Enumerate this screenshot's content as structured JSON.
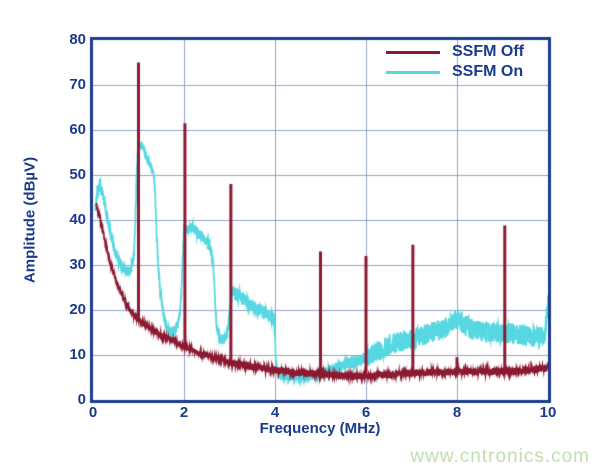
{
  "watermark": {
    "text": "www.cntronics.com",
    "color": "#bfe0ae"
  },
  "chart_data": {
    "type": "line",
    "title": "",
    "xlabel": "Frequency (MHz)",
    "ylabel": "Amplitude (dBµV)",
    "xlim": [
      0,
      10
    ],
    "ylim": [
      0,
      80
    ],
    "xticks": [
      0,
      2,
      4,
      6,
      8,
      10
    ],
    "yticks": [
      0,
      10,
      20,
      30,
      40,
      50,
      60,
      70,
      80
    ],
    "grid": true,
    "legend_position": "top-right",
    "colors": {
      "axis": "#1a3a8c",
      "grid": "#93a3c9",
      "background": "#ffffff"
    },
    "series": [
      {
        "name": "SSFM Off",
        "color": "#8b1a31",
        "description": "Smooth 1/f noise floor with narrow spurs at harmonics",
        "points": [
          [
            0.07,
            43.5
          ],
          [
            0.12,
            41.5
          ],
          [
            0.18,
            39.3
          ],
          [
            0.26,
            35.6
          ],
          [
            0.33,
            32.2
          ],
          [
            0.4,
            29.6
          ],
          [
            0.48,
            27.4
          ],
          [
            0.59,
            24.4
          ],
          [
            0.7,
            22.0
          ],
          [
            0.84,
            19.5
          ],
          [
            1.0,
            17.8
          ],
          [
            1.2,
            16.2
          ],
          [
            1.4,
            15.0
          ],
          [
            1.6,
            14.0
          ],
          [
            1.8,
            13.0
          ],
          [
            2.0,
            11.8
          ],
          [
            2.2,
            11.0
          ],
          [
            2.45,
            10.2
          ],
          [
            2.7,
            9.4
          ],
          [
            2.95,
            8.6
          ],
          [
            3.2,
            8.0
          ],
          [
            3.5,
            7.4
          ],
          [
            3.8,
            6.9
          ],
          [
            4.1,
            6.5
          ],
          [
            4.5,
            6.1
          ],
          [
            5.0,
            5.7
          ],
          [
            5.4,
            5.4
          ],
          [
            5.8,
            5.3
          ],
          [
            6.2,
            5.4
          ],
          [
            6.6,
            5.7
          ],
          [
            7.0,
            6.0
          ],
          [
            7.4,
            6.1
          ],
          [
            7.8,
            6.2
          ],
          [
            8.2,
            6.3
          ],
          [
            8.6,
            6.3
          ],
          [
            9.0,
            6.4
          ],
          [
            9.4,
            6.5
          ],
          [
            9.7,
            6.7
          ],
          [
            10.0,
            7.2
          ]
        ],
        "spikes": [
          [
            1.0,
            75.0
          ],
          [
            2.02,
            61.5
          ],
          [
            3.03,
            48.0
          ],
          [
            5.0,
            33.0
          ],
          [
            6.0,
            32.0
          ],
          [
            7.03,
            34.5
          ],
          [
            8.0,
            9.5
          ],
          [
            9.05,
            38.8
          ]
        ],
        "noise_segments": [
          [
            0.0,
            3.0,
            0.5
          ],
          [
            3.0,
            10.05,
            0.8
          ]
        ]
      },
      {
        "name": "SSFM On",
        "color": "#56d7e1",
        "description": "Spread-spectrum: broad humps at harmonics, raised noise floor above 5 MHz",
        "points": [
          [
            0.05,
            43.0
          ],
          [
            0.1,
            46.5
          ],
          [
            0.15,
            48.0
          ],
          [
            0.2,
            46.0
          ],
          [
            0.26,
            43.5
          ],
          [
            0.3,
            41.0
          ],
          [
            0.36,
            38.0
          ],
          [
            0.42,
            35.5
          ],
          [
            0.5,
            32.5
          ],
          [
            0.58,
            30.5
          ],
          [
            0.68,
            29.0
          ],
          [
            0.78,
            28.3
          ],
          [
            0.85,
            29.5
          ],
          [
            0.9,
            32.0
          ],
          [
            0.93,
            40.0
          ],
          [
            0.96,
            50.0
          ],
          [
            0.98,
            55.0
          ],
          [
            1.0,
            57.0
          ],
          [
            1.08,
            56.5
          ],
          [
            1.12,
            55.5
          ],
          [
            1.16,
            54.5
          ],
          [
            1.2,
            53.5
          ],
          [
            1.25,
            52.5
          ],
          [
            1.3,
            51.0
          ],
          [
            1.34,
            50.0
          ],
          [
            1.37,
            45.0
          ],
          [
            1.4,
            36.0
          ],
          [
            1.44,
            29.0
          ],
          [
            1.48,
            24.0
          ],
          [
            1.53,
            20.0
          ],
          [
            1.58,
            17.5
          ],
          [
            1.65,
            15.5
          ],
          [
            1.72,
            15.0
          ],
          [
            1.8,
            15.5
          ],
          [
            1.87,
            17.0
          ],
          [
            1.92,
            20.0
          ],
          [
            1.95,
            26.0
          ],
          [
            1.98,
            34.0
          ],
          [
            2.0,
            38.0
          ],
          [
            2.1,
            38.3
          ],
          [
            2.2,
            38.0
          ],
          [
            2.3,
            37.2
          ],
          [
            2.4,
            36.3
          ],
          [
            2.5,
            35.0
          ],
          [
            2.58,
            34.0
          ],
          [
            2.64,
            30.0
          ],
          [
            2.68,
            22.0
          ],
          [
            2.72,
            16.0
          ],
          [
            2.78,
            13.8
          ],
          [
            2.86,
            13.2
          ],
          [
            2.92,
            14.0
          ],
          [
            2.98,
            16.5
          ],
          [
            3.02,
            21.0
          ],
          [
            3.06,
            23.8
          ],
          [
            3.15,
            23.5
          ],
          [
            3.25,
            22.8
          ],
          [
            3.35,
            22.0
          ],
          [
            3.45,
            21.0
          ],
          [
            3.55,
            20.5
          ],
          [
            3.65,
            20.0
          ],
          [
            3.75,
            19.5
          ],
          [
            3.85,
            18.8
          ],
          [
            3.98,
            18.0
          ],
          [
            4.02,
            9.0
          ],
          [
            4.06,
            5.5
          ],
          [
            4.2,
            5.0
          ],
          [
            4.4,
            4.9
          ],
          [
            4.6,
            5.0
          ],
          [
            4.8,
            5.1
          ],
          [
            5.0,
            5.5
          ],
          [
            5.15,
            6.2
          ],
          [
            5.3,
            7.0
          ],
          [
            5.5,
            7.8
          ],
          [
            5.7,
            8.3
          ],
          [
            5.9,
            9.0
          ],
          [
            6.1,
            10.0
          ],
          [
            6.3,
            11.0
          ],
          [
            6.5,
            12.0
          ],
          [
            6.7,
            12.8
          ],
          [
            6.9,
            13.3
          ],
          [
            7.1,
            13.8
          ],
          [
            7.3,
            14.5
          ],
          [
            7.5,
            15.2
          ],
          [
            7.7,
            15.8
          ],
          [
            7.85,
            16.8
          ],
          [
            7.95,
            17.8
          ],
          [
            8.05,
            18.0
          ],
          [
            8.15,
            16.8
          ],
          [
            8.3,
            15.8
          ],
          [
            8.5,
            15.2
          ],
          [
            8.7,
            15.0
          ],
          [
            9.0,
            15.0
          ],
          [
            9.2,
            14.8
          ],
          [
            9.4,
            14.4
          ],
          [
            9.6,
            14.2
          ],
          [
            9.8,
            14.0
          ],
          [
            9.93,
            14.5
          ],
          [
            10.0,
            21.5
          ]
        ],
        "spikes": [],
        "noise_segments": [
          [
            0.0,
            0.95,
            1.2
          ],
          [
            0.95,
            1.36,
            0.9
          ],
          [
            1.36,
            2.95,
            1.2
          ],
          [
            2.95,
            4.0,
            1.5
          ],
          [
            4.0,
            5.0,
            0.6
          ],
          [
            5.0,
            6.0,
            1.3
          ],
          [
            6.0,
            10.05,
            2.3
          ]
        ]
      }
    ]
  }
}
